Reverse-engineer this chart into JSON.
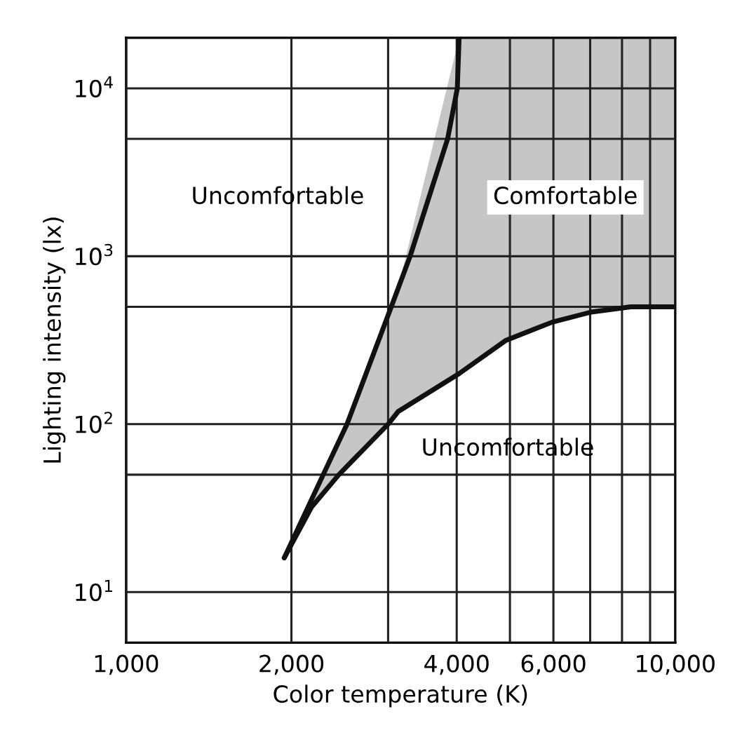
{
  "chart_data": {
    "type": "line",
    "xlabel": "Color temperature (K)",
    "ylabel": "Lighting intensity (lx)",
    "log": "xy",
    "grid": true,
    "xlim": [
      1000,
      10000
    ],
    "ylim": [
      5,
      20000
    ],
    "xticks": [
      {
        "value": 1000,
        "label": "1,000"
      },
      {
        "value": 2000,
        "label": "2,000"
      },
      {
        "value": 3000,
        "label": null
      },
      {
        "value": 4000,
        "label": "4,000"
      },
      {
        "value": 5000,
        "label": null
      },
      {
        "value": 6000,
        "label": "6,000"
      },
      {
        "value": 7000,
        "label": null
      },
      {
        "value": 8000,
        "label": null
      },
      {
        "value": 9000,
        "label": null
      },
      {
        "value": 10000,
        "label": "10,000"
      }
    ],
    "yticks": [
      {
        "value": 10,
        "label": "10$^{1}$"
      },
      {
        "value": 50,
        "label": null
      },
      {
        "value": 100,
        "label": "10$^{2}$"
      },
      {
        "value": 500,
        "label": null
      },
      {
        "value": 1000,
        "label": "10$^{3}$"
      },
      {
        "value": 5000,
        "label": null
      },
      {
        "value": 10000,
        "label": "10$^{4}$"
      }
    ],
    "series": [
      {
        "color": "#111111",
        "x": [
          1941,
          2285,
          2525,
          3040,
          3290,
          3850,
          4010,
          4040
        ],
        "values": [
          16,
          50,
          100,
          500,
          1000,
          5000,
          10000,
          20000
        ]
      },
      {
        "color": "#111111",
        "x": [
          1941,
          2175,
          2440,
          3000,
          3130,
          4040,
          4920,
          5970,
          7030,
          8300,
          10000
        ],
        "values": [
          16,
          32,
          50,
          100,
          119,
          200,
          316,
          405,
          465,
          500,
          500
        ],
        "lower": [
          16,
          32,
          50,
          100,
          119,
          200,
          316,
          405,
          465,
          500,
          500
        ],
        "upper": [
          16,
          35,
          78,
          450,
          650,
          20000,
          20000,
          20000,
          20000,
          20000,
          20000
        ]
      }
    ],
    "annotations": [
      "Uncomfortable",
      "Comfortable",
      "Uncomfortable"
    ]
  }
}
